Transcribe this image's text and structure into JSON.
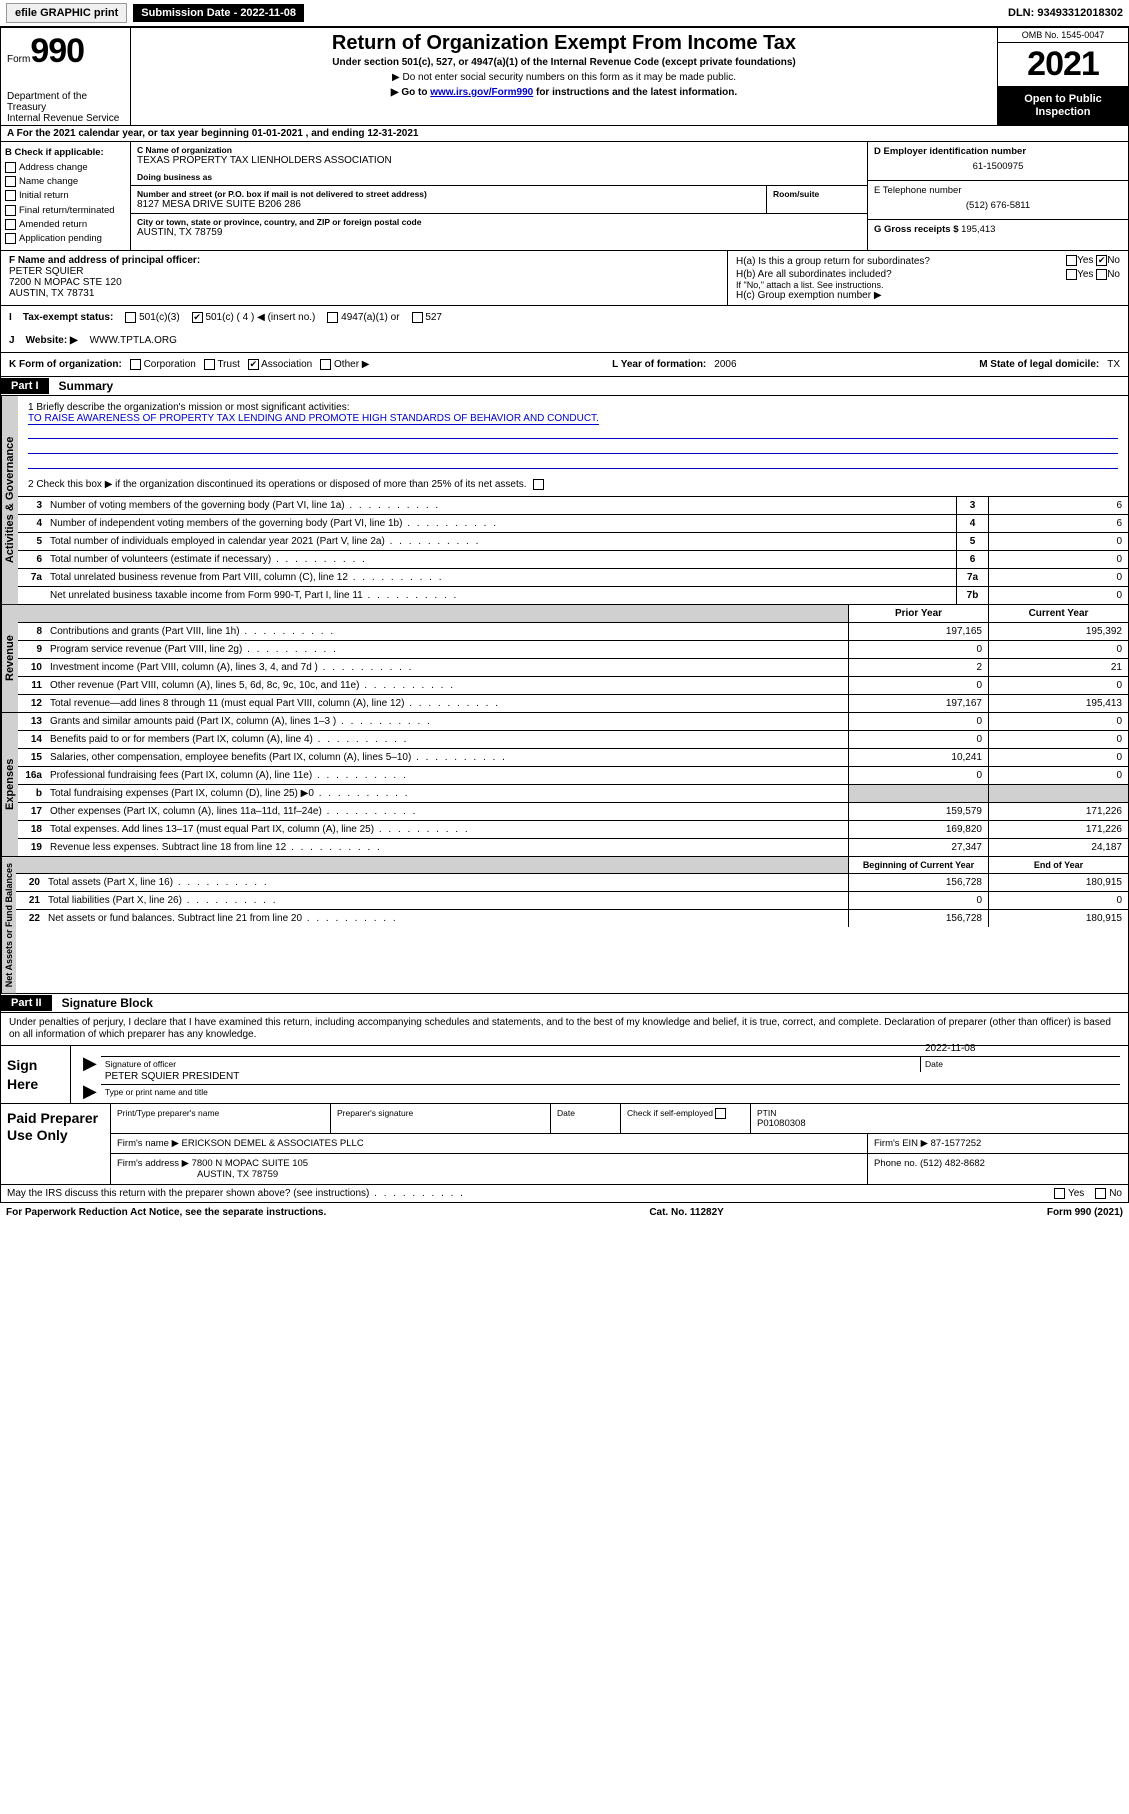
{
  "topbar": {
    "efile_btn": "efile GRAPHIC print",
    "submission": "Submission Date - 2022-11-08",
    "dln": "DLN: 93493312018302"
  },
  "header": {
    "form_prefix": "Form",
    "form_number": "990",
    "dept": "Department of the Treasury\nInternal Revenue Service",
    "title": "Return of Organization Exempt From Income Tax",
    "subtitle": "Under section 501(c), 527, or 4947(a)(1) of the Internal Revenue Code (except private foundations)",
    "note1": "▶ Do not enter social security numbers on this form as it may be made public.",
    "note2_pre": "▶ Go to ",
    "note2_link": "www.irs.gov/Form990",
    "note2_post": " for instructions and the latest information.",
    "omb": "OMB No. 1545-0047",
    "year": "2021",
    "open": "Open to Public Inspection"
  },
  "section_a": "A For the 2021 calendar year, or tax year beginning 01-01-2021   , and ending 12-31-2021",
  "box_b": {
    "label": "B Check if applicable:",
    "items": [
      "Address change",
      "Name change",
      "Initial return",
      "Final return/terminated",
      "Amended return",
      "Application pending"
    ]
  },
  "box_c": {
    "name_label": "C Name of organization",
    "name": "TEXAS PROPERTY TAX LIENHOLDERS ASSOCIATION",
    "dba_label": "Doing business as",
    "street_label": "Number and street (or P.O. box if mail is not delivered to street address)",
    "room_label": "Room/suite",
    "street": "8127 MESA DRIVE SUITE B206 286",
    "city_label": "City or town, state or province, country, and ZIP or foreign postal code",
    "city": "AUSTIN, TX  78759"
  },
  "box_d": {
    "label": "D Employer identification number",
    "ein": "61-1500975"
  },
  "box_e": {
    "label": "E Telephone number",
    "phone": "(512) 676-5811"
  },
  "box_g": {
    "label": "G Gross receipts $",
    "amount": "195,413"
  },
  "box_f": {
    "label": "F Name and address of principal officer:",
    "name": "PETER SQUIER",
    "addr1": "7200 N MOPAC STE 120",
    "addr2": "AUSTIN, TX  78731"
  },
  "box_h": {
    "ha": "H(a)  Is this a group return for subordinates?",
    "hb": "H(b)  Are all subordinates included?",
    "hb_note": "If \"No,\" attach a list. See instructions.",
    "hc": "H(c)  Group exemption number ▶",
    "yes": "Yes",
    "no": "No"
  },
  "row_i": {
    "label": "I    Tax-exempt status:",
    "c3": "501(c)(3)",
    "c": "501(c) ( 4 ) ◀ (insert no.)",
    "a1": "4947(a)(1) or",
    "s527": "527"
  },
  "row_j": {
    "label": "J    Website: ▶",
    "url": "WWW.TPTLA.ORG"
  },
  "row_k": {
    "label": "K Form of organization:",
    "opts": [
      "Corporation",
      "Trust",
      "Association",
      "Other ▶"
    ],
    "checked": 2,
    "l_label": "L Year of formation:",
    "l_val": "2006",
    "m_label": "M State of legal domicile:",
    "m_val": "TX"
  },
  "part1": {
    "hdr": "Part I",
    "title": "Summary",
    "q1": "1   Briefly describe the organization's mission or most significant activities:",
    "mission": "TO RAISE AWARENESS OF PROPERTY TAX LENDING AND PROMOTE HIGH STANDARDS OF BEHAVIOR AND CONDUCT.",
    "q2": "2   Check this box ▶        if the organization discontinued its operations or disposed of more than 25% of its net assets.",
    "lines_simple": [
      {
        "n": "3",
        "d": "Number of voting members of the governing body (Part VI, line 1a)",
        "box": "3",
        "v": "6"
      },
      {
        "n": "4",
        "d": "Number of independent voting members of the governing body (Part VI, line 1b)",
        "box": "4",
        "v": "6"
      },
      {
        "n": "5",
        "d": "Total number of individuals employed in calendar year 2021 (Part V, line 2a)",
        "box": "5",
        "v": "0"
      },
      {
        "n": "6",
        "d": "Total number of volunteers (estimate if necessary)",
        "box": "6",
        "v": "0"
      },
      {
        "n": "7a",
        "d": "Total unrelated business revenue from Part VIII, column (C), line 12",
        "box": "7a",
        "v": "0"
      },
      {
        "n": "",
        "d": "Net unrelated business taxable income from Form 990-T, Part I, line 11",
        "box": "7b",
        "v": "0"
      }
    ],
    "col_hdr_prior": "Prior Year",
    "col_hdr_current": "Current Year",
    "revenue": [
      {
        "n": "8",
        "d": "Contributions and grants (Part VIII, line 1h)",
        "p": "197,165",
        "c": "195,392"
      },
      {
        "n": "9",
        "d": "Program service revenue (Part VIII, line 2g)",
        "p": "0",
        "c": "0"
      },
      {
        "n": "10",
        "d": "Investment income (Part VIII, column (A), lines 3, 4, and 7d )",
        "p": "2",
        "c": "21"
      },
      {
        "n": "11",
        "d": "Other revenue (Part VIII, column (A), lines 5, 6d, 8c, 9c, 10c, and 11e)",
        "p": "0",
        "c": "0"
      },
      {
        "n": "12",
        "d": "Total revenue—add lines 8 through 11 (must equal Part VIII, column (A), line 12)",
        "p": "197,167",
        "c": "195,413"
      }
    ],
    "expenses": [
      {
        "n": "13",
        "d": "Grants and similar amounts paid (Part IX, column (A), lines 1–3 )",
        "p": "0",
        "c": "0"
      },
      {
        "n": "14",
        "d": "Benefits paid to or for members (Part IX, column (A), line 4)",
        "p": "0",
        "c": "0"
      },
      {
        "n": "15",
        "d": "Salaries, other compensation, employee benefits (Part IX, column (A), lines 5–10)",
        "p": "10,241",
        "c": "0"
      },
      {
        "n": "16a",
        "d": "Professional fundraising fees (Part IX, column (A), line 11e)",
        "p": "0",
        "c": "0"
      },
      {
        "n": "b",
        "d": "Total fundraising expenses (Part IX, column (D), line 25) ▶0",
        "p": "",
        "c": "",
        "shaded": true
      },
      {
        "n": "17",
        "d": "Other expenses (Part IX, column (A), lines 11a–11d, 11f–24e)",
        "p": "159,579",
        "c": "171,226"
      },
      {
        "n": "18",
        "d": "Total expenses. Add lines 13–17 (must equal Part IX, column (A), line 25)",
        "p": "169,820",
        "c": "171,226"
      },
      {
        "n": "19",
        "d": "Revenue less expenses. Subtract line 18 from line 12",
        "p": "27,347",
        "c": "24,187"
      }
    ],
    "col_hdr_begin": "Beginning of Current Year",
    "col_hdr_end": "End of Year",
    "netassets": [
      {
        "n": "20",
        "d": "Total assets (Part X, line 16)",
        "p": "156,728",
        "c": "180,915"
      },
      {
        "n": "21",
        "d": "Total liabilities (Part X, line 26)",
        "p": "0",
        "c": "0"
      },
      {
        "n": "22",
        "d": "Net assets or fund balances. Subtract line 21 from line 20",
        "p": "156,728",
        "c": "180,915"
      }
    ]
  },
  "part2": {
    "hdr": "Part II",
    "title": "Signature Block",
    "declare": "Under penalties of perjury, I declare that I have examined this return, including accompanying schedules and statements, and to the best of my knowledge and belief, it is true, correct, and complete. Declaration of preparer (other than officer) is based on all information of which preparer has any knowledge.",
    "sign_here": "Sign Here",
    "sig_officer": "Signature of officer",
    "sig_date_label": "Date",
    "sig_date": "2022-11-08",
    "officer_name": "PETER SQUIER PRESIDENT",
    "officer_type": "Type or print name and title",
    "paid": "Paid Preparer Use Only",
    "prep_name_label": "Print/Type preparer's name",
    "prep_sig_label": "Preparer's signature",
    "prep_date_label": "Date",
    "prep_check": "Check          if self-employed",
    "ptin_label": "PTIN",
    "ptin": "P01080308",
    "firm_name_label": "Firm's name    ▶",
    "firm_name": "ERICKSON DEMEL & ASSOCIATES PLLC",
    "firm_ein_label": "Firm's EIN ▶",
    "firm_ein": "87-1577252",
    "firm_addr_label": "Firm's address ▶",
    "firm_addr": "7800 N MOPAC SUITE 105",
    "firm_city": "AUSTIN, TX  78759",
    "firm_phone_label": "Phone no.",
    "firm_phone": "(512) 482-8682",
    "discuss": "May the IRS discuss this return with the preparer shown above? (see instructions)"
  },
  "footer": {
    "paperwork": "For Paperwork Reduction Act Notice, see the separate instructions.",
    "cat": "Cat. No. 11282Y",
    "form": "Form 990 (2021)"
  },
  "vtabs": {
    "ag": "Activities & Governance",
    "rev": "Revenue",
    "exp": "Expenses",
    "na": "Net Assets or Fund Balances"
  }
}
